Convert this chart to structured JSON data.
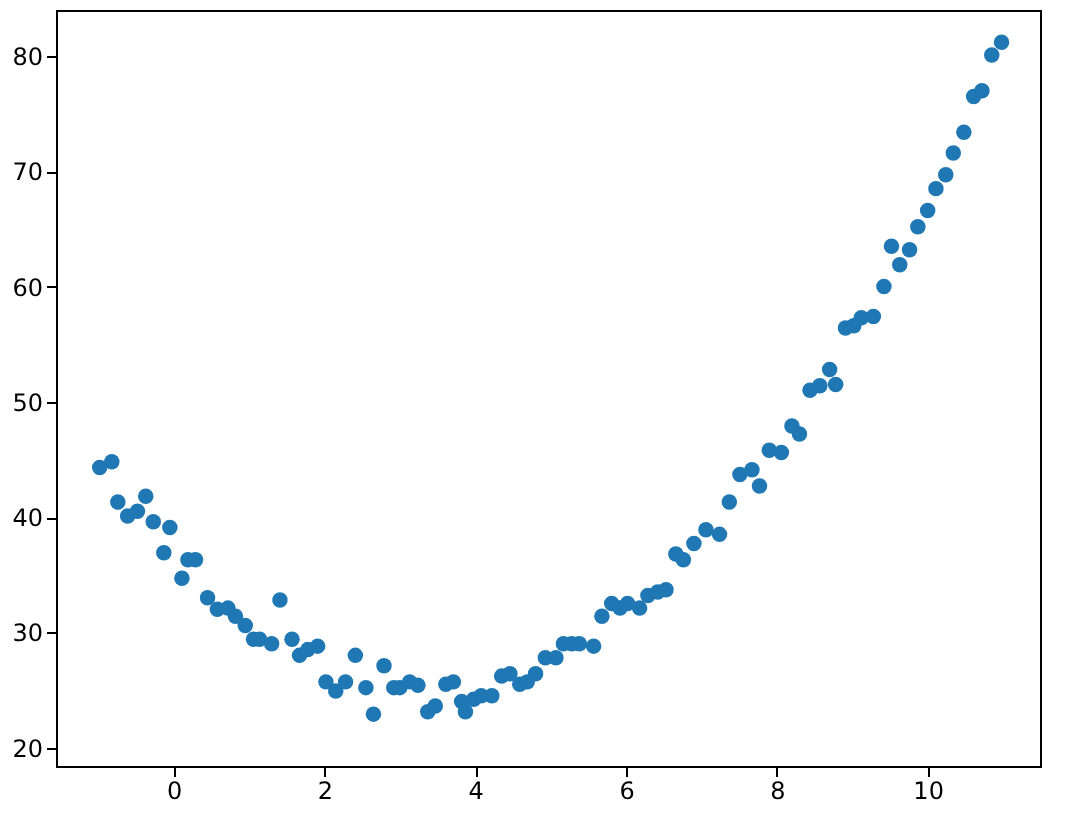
{
  "chart_data": {
    "type": "scatter",
    "x": [
      -0.98,
      -0.82,
      -0.74,
      -0.61,
      -0.48,
      -0.37,
      -0.27,
      -0.13,
      -0.05,
      0.11,
      0.19,
      0.29,
      0.45,
      0.58,
      0.72,
      0.82,
      0.95,
      1.06,
      1.14,
      1.3,
      1.41,
      1.57,
      1.67,
      1.78,
      1.91,
      2.02,
      2.15,
      2.28,
      2.41,
      2.55,
      2.65,
      2.79,
      2.92,
      3.0,
      3.13,
      3.24,
      3.37,
      3.47,
      3.61,
      3.71,
      3.82,
      3.87,
      3.98,
      4.08,
      4.22,
      4.35,
      4.46,
      4.59,
      4.69,
      4.8,
      4.93,
      5.07,
      5.17,
      5.28,
      5.38,
      5.57,
      5.68,
      5.81,
      5.92,
      6.02,
      6.18,
      6.29,
      6.42,
      6.53,
      6.66,
      6.76,
      6.9,
      7.06,
      7.24,
      7.37,
      7.51,
      7.67,
      7.77,
      7.9,
      8.06,
      8.2,
      8.3,
      8.44,
      8.57,
      8.7,
      8.78,
      8.91,
      9.02,
      9.12,
      9.28,
      9.42,
      9.52,
      9.63,
      9.76,
      9.87,
      10.0,
      10.11,
      10.24,
      10.34,
      10.48,
      10.61,
      10.72,
      10.85,
      10.98
    ],
    "series": [
      {
        "color": "#1f77b4",
        "values": [
          44.3,
          44.8,
          41.3,
          40.1,
          40.5,
          41.8,
          39.6,
          36.9,
          39.1,
          34.7,
          36.3,
          36.3,
          33.0,
          32.0,
          32.1,
          31.4,
          30.6,
          29.4,
          29.4,
          29.0,
          32.8,
          29.4,
          28.0,
          28.5,
          28.8,
          25.7,
          24.9,
          25.7,
          28.0,
          25.2,
          22.9,
          27.1,
          25.2,
          25.2,
          25.7,
          25.4,
          23.1,
          23.6,
          25.5,
          25.7,
          24.0,
          23.1,
          24.2,
          24.5,
          24.5,
          26.2,
          26.4,
          25.5,
          25.7,
          26.4,
          27.8,
          27.8,
          29.0,
          29.0,
          29.0,
          28.8,
          31.4,
          32.5,
          32.1,
          32.5,
          32.1,
          33.2,
          33.5,
          33.7,
          36.8,
          36.3,
          37.7,
          38.9,
          38.5,
          41.3,
          43.7,
          44.1,
          42.7,
          45.8,
          45.6,
          47.9,
          47.2,
          51.0,
          51.4,
          52.8,
          51.5,
          56.4,
          56.6,
          57.3,
          57.4,
          60.0,
          63.5,
          61.9,
          63.2,
          65.2,
          66.6,
          68.5,
          69.7,
          71.6,
          73.4,
          76.5,
          77.0,
          80.1,
          81.2
        ]
      }
    ],
    "xlim": [
      -1.56,
      11.49
    ],
    "ylim": [
      18.4,
      84.0
    ],
    "xticks": [
      0,
      2,
      4,
      6,
      8,
      10
    ],
    "yticks": [
      20,
      30,
      40,
      50,
      60,
      70,
      80
    ],
    "marker": "circle",
    "grid": false,
    "legend": false
  }
}
